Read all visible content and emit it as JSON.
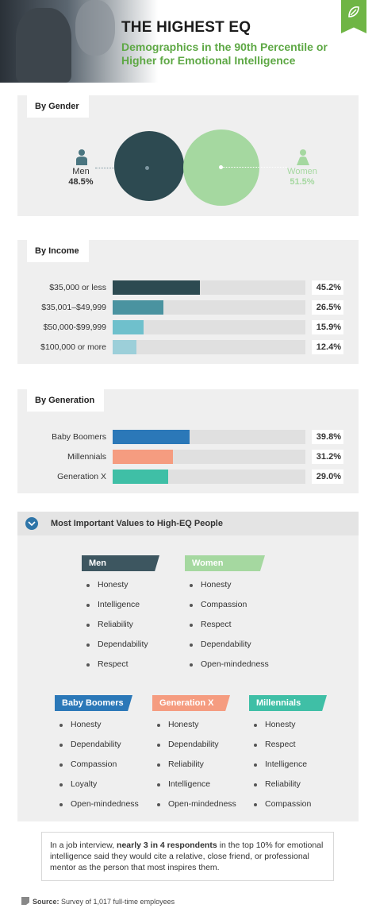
{
  "header": {
    "title": "THE HIGHEST EQ",
    "subtitle": "Demographics in the 90th Percentile or Higher for Emotional Intelligence",
    "accent": "#5ea845"
  },
  "gender": {
    "tab": "By Gender",
    "men_label": "Men",
    "men_pct": "48.5%",
    "women_label": "Women",
    "women_pct": "51.5%",
    "men_color": "#2d4a51",
    "women_color": "#a5d8a0"
  },
  "income": {
    "tab": "By Income",
    "rows": [
      {
        "label": "$35,000 or less",
        "value_text": "45.2%"
      },
      {
        "label": "$35,001–$49,999",
        "value_text": "26.5%"
      },
      {
        "label": "$50,000-$99,999",
        "value_text": "15.9%"
      },
      {
        "label": "$100,000 or more",
        "value_text": "12.4%"
      }
    ]
  },
  "generation": {
    "tab": "By Generation",
    "rows": [
      {
        "label": "Baby Boomers",
        "value_text": "39.8%"
      },
      {
        "label": "Millennials",
        "value_text": "31.2%"
      },
      {
        "label": "Generation X",
        "value_text": "29.0%"
      }
    ]
  },
  "chart_data": [
    {
      "type": "pie",
      "title": "By Gender",
      "categories": [
        "Men",
        "Women"
      ],
      "values": [
        48.5,
        51.5
      ],
      "colors": [
        "#2d4a51",
        "#a5d8a0"
      ]
    },
    {
      "type": "bar",
      "title": "By Income",
      "categories": [
        "$35,000 or less",
        "$35,001–$49,999",
        "$50,000-$99,999",
        "$100,000 or more"
      ],
      "values": [
        45.2,
        26.5,
        15.9,
        12.4
      ],
      "colors": [
        "#2d4a51",
        "#4a93a0",
        "#6fc0cc",
        "#9ccfd9"
      ],
      "xlim": [
        0,
        100
      ]
    },
    {
      "type": "bar",
      "title": "By Generation",
      "categories": [
        "Baby Boomers",
        "Millennials",
        "Generation X"
      ],
      "values": [
        39.8,
        31.2,
        29.0
      ],
      "colors": [
        "#2b78b8",
        "#f59c80",
        "#3fbfa6"
      ],
      "xlim": [
        0,
        100
      ]
    }
  ],
  "values": {
    "title": "Most Important Values to High-EQ People",
    "men": {
      "title": "Men",
      "items": [
        "Honesty",
        "Intelligence",
        "Reliability",
        "Dependability",
        "Respect"
      ]
    },
    "women": {
      "title": "Women",
      "items": [
        "Honesty",
        "Compassion",
        "Respect",
        "Dependability",
        "Open-mindedness"
      ]
    },
    "boomers": {
      "title": "Baby Boomers",
      "items": [
        "Honesty",
        "Dependability",
        "Compassion",
        "Loyalty",
        "Open-mindedness"
      ]
    },
    "genx": {
      "title": "Generation X",
      "items": [
        "Honesty",
        "Dependability",
        "Reliability",
        "Intelligence",
        "Open-mindedness"
      ]
    },
    "millennials": {
      "title": "Millennials",
      "items": [
        "Honesty",
        "Respect",
        "Intelligence",
        "Reliability",
        "Compassion"
      ]
    }
  },
  "quote": {
    "prefix": "In a job interview, ",
    "bold": "nearly 3 in 4 respondents",
    "suffix": " in the top 10% for emotional intelligence said they would cite a relative, close friend, or professional mentor as the person that most inspires them."
  },
  "source": {
    "label": "Source:",
    "text": " Survey of 1,017 full-time employees"
  }
}
